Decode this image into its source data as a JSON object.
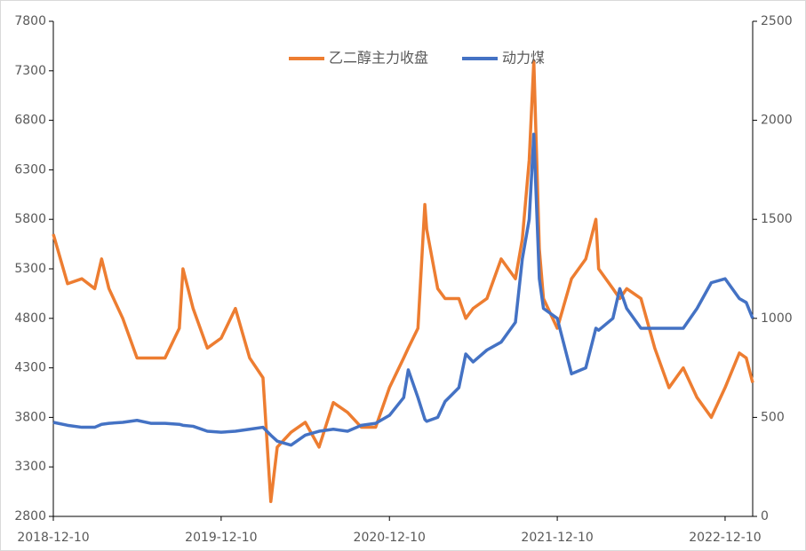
{
  "chart_data": {
    "type": "line",
    "x": [
      "2018-12-10",
      "2019-01-10",
      "2019-02-10",
      "2019-03-10",
      "2019-03-25",
      "2019-04-10",
      "2019-05-10",
      "2019-06-10",
      "2019-07-10",
      "2019-08-10",
      "2019-09-10",
      "2019-09-18",
      "2019-10-10",
      "2019-11-10",
      "2019-12-10",
      "2020-01-10",
      "2020-02-10",
      "2020-03-10",
      "2020-03-27",
      "2020-04-10",
      "2020-05-10",
      "2020-06-10",
      "2020-07-10",
      "2020-08-10",
      "2020-09-10",
      "2020-10-10",
      "2020-11-10",
      "2020-12-10",
      "2021-01-10",
      "2021-01-20",
      "2021-02-10",
      "2021-02-25",
      "2021-03-01",
      "2021-03-25",
      "2021-04-10",
      "2021-05-10",
      "2021-05-25",
      "2021-06-10",
      "2021-07-10",
      "2021-08-10",
      "2021-09-10",
      "2021-09-25",
      "2021-10-10",
      "2021-10-20",
      "2021-11-01",
      "2021-11-10",
      "2021-12-10",
      "2022-01-10",
      "2022-02-10",
      "2022-03-04",
      "2022-03-10",
      "2022-04-10",
      "2022-04-25",
      "2022-05-10",
      "2022-06-10",
      "2022-07-10",
      "2022-08-10",
      "2022-09-10",
      "2022-10-10",
      "2022-11-10",
      "2022-12-10",
      "2023-01-10",
      "2023-01-25",
      "2023-02-08"
    ],
    "series": [
      {
        "name": "乙二醇主力收盘",
        "color": "#ED7D31",
        "values": [
          5650,
          5150,
          5200,
          5100,
          5400,
          5100,
          4800,
          4400,
          4400,
          4400,
          4700,
          5300,
          4900,
          4500,
          4600,
          4900,
          4400,
          4200,
          2950,
          3500,
          3650,
          3750,
          3500,
          3950,
          3850,
          3700,
          3700,
          4100,
          4400,
          4500,
          4700,
          5950,
          5700,
          5100,
          5000,
          5000,
          4800,
          4900,
          5000,
          5400,
          5200,
          5600,
          6400,
          7400,
          5500,
          5000,
          4700,
          5200,
          5400,
          5800,
          5300,
          5100,
          5000,
          5100,
          5000,
          4500,
          4100,
          4300,
          4000,
          3800,
          4100,
          4450,
          4400,
          4150
        ]
      },
      {
        "name": "动力煤",
        "color": "#4472C4",
        "axis": "y2",
        "values": [
          475,
          460,
          450,
          450,
          465,
          470,
          475,
          485,
          470,
          470,
          465,
          460,
          455,
          430,
          425,
          430,
          440,
          450,
          410,
          380,
          360,
          410,
          430,
          440,
          430,
          460,
          470,
          510,
          600,
          740,
          600,
          490,
          480,
          500,
          580,
          650,
          820,
          780,
          840,
          880,
          980,
          1300,
          1500,
          1930,
          1200,
          1050,
          1000,
          720,
          750,
          950,
          940,
          1000,
          1150,
          1050,
          950,
          950,
          950,
          950,
          1050,
          1180,
          1200,
          1100,
          1080,
          1000
        ]
      }
    ],
    "xlim": [
      "2018-12-10",
      "2023-02-08"
    ],
    "xticks": [
      "2018-12-10",
      "2019-12-10",
      "2020-12-10",
      "2021-12-10",
      "2022-12-10"
    ],
    "ylim": [
      2800,
      7800
    ],
    "yticks": [
      2800,
      3300,
      3800,
      4300,
      4800,
      5300,
      5800,
      6300,
      6800,
      7300,
      7800
    ],
    "y2lim": [
      0,
      2500
    ],
    "y2ticks": [
      0,
      500,
      1000,
      1500,
      2000,
      2500
    ],
    "legend": "top"
  }
}
